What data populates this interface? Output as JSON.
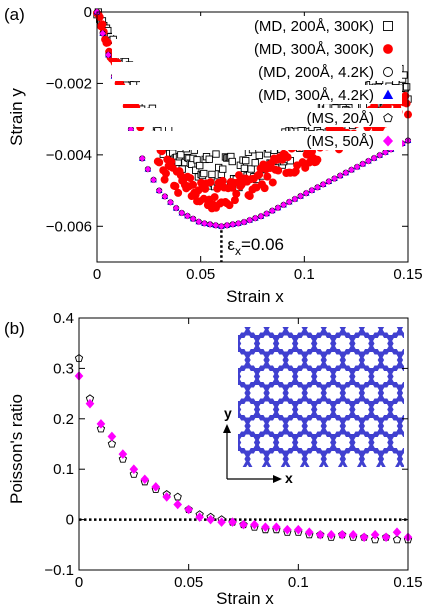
{
  "chart_data": [
    {
      "panel_label": "(a)",
      "type": "scatter",
      "xlabel": "Strain x",
      "ylabel": "Strain y",
      "xlim": [
        0,
        0.15
      ],
      "ylim": [
        -0.007,
        0
      ],
      "xticks": [
        0,
        0.05,
        0.1,
        0.15
      ],
      "xtick_labels": [
        "0",
        "0.05",
        "0.1",
        "0.15"
      ],
      "yticks": [
        0,
        -0.002,
        -0.004,
        -0.006
      ],
      "ytick_labels": [
        "0",
        "−0.002",
        "−0.004",
        "−0.006"
      ],
      "annotation": {
        "text": "ε",
        "sub": "x",
        "suffix": "=0.06",
        "x": 0.06
      },
      "legend_position": "top-right",
      "series": [
        {
          "name": "(MD, 200Å, 300K)",
          "marker": "square-open",
          "color": "#000000",
          "kind": "band",
          "noise": 0.0005,
          "x": [
            0,
            0.01,
            0.02,
            0.03,
            0.04,
            0.05,
            0.06,
            0.07,
            0.08,
            0.09,
            0.1,
            0.11,
            0.12,
            0.13,
            0.14,
            0.15
          ],
          "values": [
            0,
            -0.0012,
            -0.0024,
            -0.0034,
            -0.0041,
            -0.0044,
            -0.0045,
            -0.0044,
            -0.0041,
            -0.0038,
            -0.0035,
            -0.0031,
            -0.0028,
            -0.0025,
            -0.0022,
            -0.002
          ]
        },
        {
          "name": "(MD, 300Å, 300K)",
          "marker": "circle-filled",
          "color": "#ff0000",
          "kind": "band",
          "noise": 0.0004,
          "x": [
            0,
            0.01,
            0.02,
            0.03,
            0.04,
            0.05,
            0.06,
            0.07,
            0.08,
            0.09,
            0.1,
            0.11,
            0.12,
            0.13,
            0.14,
            0.15
          ],
          "values": [
            0,
            -0.0017,
            -0.0032,
            -0.0042,
            -0.0048,
            -0.0051,
            -0.0051,
            -0.0049,
            -0.0046,
            -0.0043,
            -0.004,
            -0.0037,
            -0.0034,
            -0.0031,
            -0.0029,
            -0.0027
          ]
        },
        {
          "name": "(MD, 200Å, 4.2K)",
          "marker": "circle-open",
          "color": "#000000",
          "kind": "line",
          "x": [
            0,
            0.01,
            0.02,
            0.03,
            0.04,
            0.05,
            0.06,
            0.07,
            0.08,
            0.09,
            0.1,
            0.11,
            0.12,
            0.13,
            0.14,
            0.15
          ],
          "values": [
            0,
            -0.0022,
            -0.0039,
            -0.005,
            -0.0056,
            -0.0059,
            -0.006,
            -0.0059,
            -0.0057,
            -0.0054,
            -0.0051,
            -0.0048,
            -0.0045,
            -0.0042,
            -0.0039,
            -0.0036
          ]
        },
        {
          "name": "(MD, 300Å, 4.2K)",
          "marker": "triangle-filled",
          "color": "#0000ff",
          "kind": "line",
          "x": [
            0,
            0.01,
            0.02,
            0.03,
            0.04,
            0.05,
            0.06,
            0.07,
            0.08,
            0.09,
            0.1,
            0.11,
            0.12,
            0.13,
            0.14,
            0.15
          ],
          "values": [
            0,
            -0.0022,
            -0.0039,
            -0.005,
            -0.0056,
            -0.0059,
            -0.006,
            -0.0059,
            -0.0057,
            -0.0054,
            -0.0051,
            -0.0048,
            -0.0045,
            -0.0042,
            -0.0039,
            -0.0036
          ]
        },
        {
          "name": "(MS, 20Å)",
          "marker": "pentagon-open",
          "color": "#000000",
          "kind": "line",
          "x": [
            0,
            0.01,
            0.02,
            0.03,
            0.04,
            0.05,
            0.06,
            0.07,
            0.08,
            0.09,
            0.1,
            0.11,
            0.12,
            0.13,
            0.14,
            0.15
          ],
          "values": [
            0,
            -0.0022,
            -0.0039,
            -0.005,
            -0.0056,
            -0.0059,
            -0.006,
            -0.0059,
            -0.0057,
            -0.0054,
            -0.0051,
            -0.0048,
            -0.0045,
            -0.0042,
            -0.0039,
            -0.0036
          ]
        },
        {
          "name": "(MS, 50Å)",
          "marker": "diamond-filled",
          "color": "#ff00ff",
          "kind": "line",
          "x": [
            0,
            0.01,
            0.02,
            0.03,
            0.04,
            0.05,
            0.06,
            0.07,
            0.08,
            0.09,
            0.1,
            0.11,
            0.12,
            0.13,
            0.14,
            0.15
          ],
          "values": [
            0,
            -0.0022,
            -0.0039,
            -0.005,
            -0.0056,
            -0.0059,
            -0.006,
            -0.0059,
            -0.0057,
            -0.0054,
            -0.0051,
            -0.0048,
            -0.0045,
            -0.0042,
            -0.0039,
            -0.0036
          ]
        }
      ]
    },
    {
      "panel_label": "(b)",
      "type": "scatter",
      "xlabel": "Strain x",
      "ylabel": "Poisson's ratio",
      "xlim": [
        0,
        0.15
      ],
      "ylim": [
        -0.1,
        0.4
      ],
      "xticks": [
        0,
        0.05,
        0.1,
        0.15
      ],
      "xtick_labels": [
        "0",
        "0.05",
        "0.1",
        "0.15"
      ],
      "yticks": [
        -0.1,
        0,
        0.1,
        0.2,
        0.3,
        0.4
      ],
      "ytick_labels": [
        "−0.1",
        "0",
        "0.1",
        "0.2",
        "0.3",
        "0.4"
      ],
      "zero_line": true,
      "inset": {
        "type": "graphene-lattice",
        "color": "#4040d0",
        "axis_x_label": "x",
        "axis_y_label": "y"
      },
      "series": [
        {
          "marker": "pentagon-open",
          "color": "#000000",
          "x": [
            0.0,
            0.005,
            0.01,
            0.015,
            0.02,
            0.025,
            0.03,
            0.035,
            0.04,
            0.045,
            0.05,
            0.055,
            0.06,
            0.065,
            0.07,
            0.075,
            0.08,
            0.085,
            0.09,
            0.095,
            0.1,
            0.105,
            0.11,
            0.115,
            0.12,
            0.125,
            0.13,
            0.135,
            0.14,
            0.145,
            0.15
          ],
          "values": [
            0.32,
            0.24,
            0.18,
            0.15,
            0.12,
            0.09,
            0.075,
            0.06,
            0.05,
            0.045,
            0.02,
            0.01,
            0.005,
            0.0,
            -0.005,
            -0.01,
            -0.015,
            -0.02,
            -0.02,
            -0.025,
            -0.025,
            -0.03,
            -0.03,
            -0.035,
            -0.03,
            -0.035,
            -0.035,
            -0.04,
            -0.035,
            -0.04,
            -0.04
          ]
        },
        {
          "marker": "diamond-filled",
          "color": "#ff00ff",
          "x": [
            0.0,
            0.005,
            0.01,
            0.015,
            0.02,
            0.025,
            0.03,
            0.035,
            0.04,
            0.045,
            0.05,
            0.055,
            0.06,
            0.065,
            0.07,
            0.075,
            0.08,
            0.085,
            0.09,
            0.095,
            0.1,
            0.105,
            0.11,
            0.115,
            0.12,
            0.125,
            0.13,
            0.135,
            0.14,
            0.145,
            0.15
          ],
          "values": [
            0.285,
            0.23,
            0.19,
            0.165,
            0.13,
            0.1,
            0.08,
            0.065,
            0.045,
            0.03,
            0.02,
            0.005,
            0.0,
            -0.005,
            -0.005,
            -0.01,
            -0.01,
            -0.015,
            -0.015,
            -0.02,
            -0.02,
            -0.025,
            -0.03,
            -0.03,
            -0.03,
            -0.03,
            -0.035,
            -0.03,
            -0.035,
            -0.025,
            -0.035
          ]
        }
      ]
    }
  ]
}
